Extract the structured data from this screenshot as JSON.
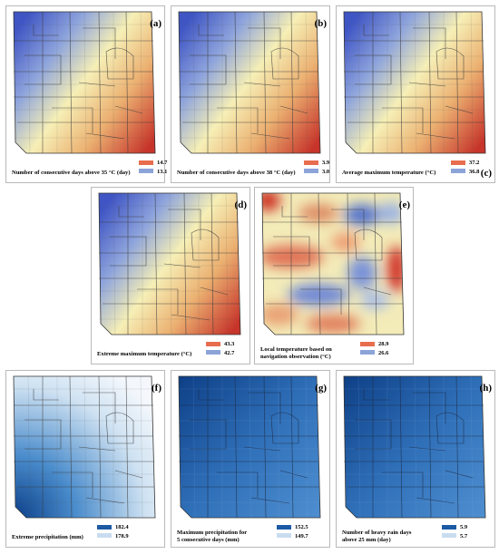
{
  "panels": [
    {
      "id": "a",
      "label": "(a)",
      "caption": "Number of consecutive days above 35 °C (day)",
      "legend_high": "14.7",
      "legend_low": "13.1",
      "palette": "temp",
      "pattern": "diag"
    },
    {
      "id": "b",
      "label": "(b)",
      "caption": "Number of consecutive days above 38 °C (day)",
      "legend_high": "3.9",
      "legend_low": "3.0",
      "palette": "temp",
      "pattern": "diag"
    },
    {
      "id": "c",
      "label": "(c)",
      "caption": "Average maximum temperature (°C)",
      "legend_high": "37.2",
      "legend_low": "36.8",
      "palette": "temp",
      "pattern": "diag"
    },
    {
      "id": "d",
      "label": "(d)",
      "caption": "Extreme maximum temperature (°C)",
      "legend_high": "43.3",
      "legend_low": "42.7",
      "palette": "temp",
      "pattern": "diag"
    },
    {
      "id": "e",
      "label": "(e)",
      "caption_line1": "Local temperature based on",
      "caption_line2": "navigation observation (°C)",
      "legend_high": "28.9",
      "legend_low": "26.6",
      "palette": "temp",
      "pattern": "blobs"
    },
    {
      "id": "f",
      "label": "(f)",
      "caption": "Extreme precipitation (mm)",
      "legend_high": "182.4",
      "legend_low": "178.9",
      "palette": "blue_light",
      "pattern": "corner"
    },
    {
      "id": "g",
      "label": "(g)",
      "caption_line1": "Maximum precipitation for",
      "caption_line2": "5 consecutive days (mm)",
      "legend_high": "152.5",
      "legend_low": "149.7",
      "palette": "blue_dark",
      "pattern": "corner"
    },
    {
      "id": "h",
      "label": "(h)",
      "caption_line1": "Number of heavy rain days",
      "caption_line2": "above 25 mm (day)",
      "legend_high": "5.9",
      "legend_low": "5.7",
      "palette": "blue_dark",
      "pattern": "corner"
    }
  ],
  "colors": {
    "temp_low": "#4a63c9",
    "temp_mid": "#f4eeb0",
    "temp_high": "#cc3b2e",
    "blue_deep": "#0b3f88",
    "blue_mid": "#3f86c8",
    "blue_pale": "#eaf3fb",
    "road": "#3a3a3a"
  }
}
